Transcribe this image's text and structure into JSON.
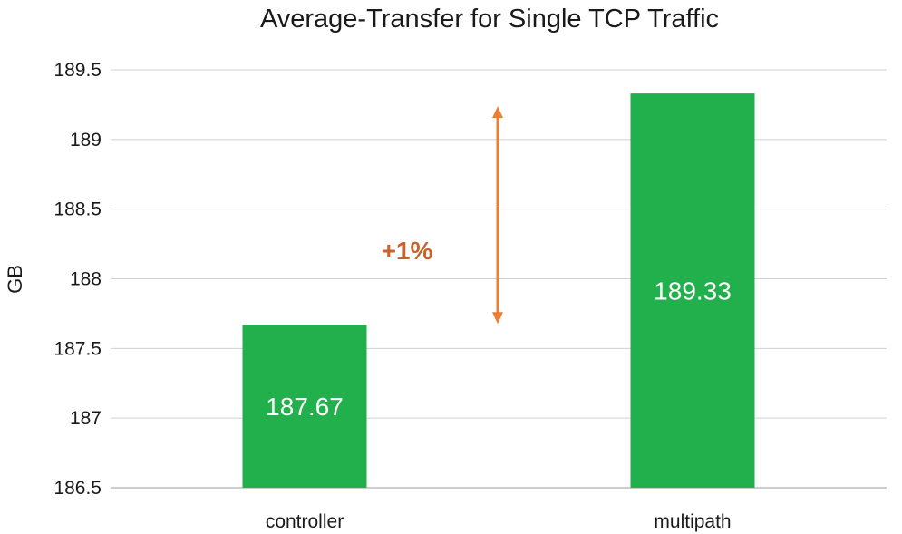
{
  "chart_data": {
    "type": "bar",
    "title": "Average-Transfer  for Single TCP Traffic",
    "ylabel": "GB",
    "xlabel": "",
    "categories": [
      "controller",
      "multipath"
    ],
    "values": [
      187.67,
      189.33
    ],
    "data_labels": [
      "187.67",
      "189.33"
    ],
    "ylim": [
      186.5,
      189.5
    ],
    "yticks": [
      186.5,
      187,
      187.5,
      188,
      188.5,
      189,
      189.5
    ],
    "ytick_labels": [
      "186.5",
      "187",
      "187.5",
      "188",
      "188.5",
      "189",
      "189.5"
    ],
    "grid": true,
    "legend": "none",
    "bar_color": "#21b04b",
    "annotation": {
      "text": "+1%",
      "color": "#c8612a",
      "arrow_color": "#ed7d31",
      "arrow_from": 187.67,
      "arrow_to": 189.33
    }
  }
}
